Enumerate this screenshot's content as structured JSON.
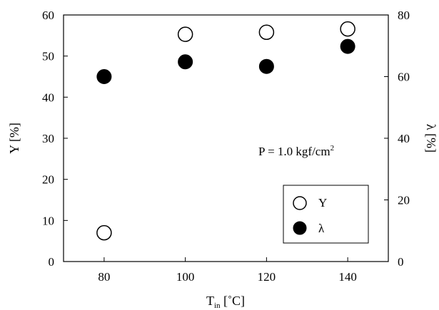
{
  "chart_data": {
    "type": "scatter",
    "x": [
      80,
      100,
      120,
      140
    ],
    "xlim": [
      70,
      150
    ],
    "x_ticks": [
      "80",
      "100",
      "120",
      "140"
    ],
    "xlabel_main": "T",
    "xlabel_sub": "in",
    "xlabel_unit": " [˚C]",
    "ylabel_left": "Y [%]",
    "ylim_left": [
      0,
      60
    ],
    "left_ticks": [
      "0",
      "10",
      "20",
      "30",
      "40",
      "50",
      "60"
    ],
    "ylabel_right": "λ [%]",
    "ylim_right": [
      0,
      80
    ],
    "right_ticks": [
      "0",
      "20",
      "40",
      "60",
      "80"
    ],
    "series": [
      {
        "name": "Y",
        "axis": "left",
        "marker": "open-circle",
        "x": [
          80,
          100,
          120,
          140
        ],
        "values": [
          7,
          55.3,
          55.8,
          56.6
        ]
      },
      {
        "name": "λ",
        "axis": "right",
        "marker": "filled-circle",
        "x": [
          80,
          100,
          120,
          140
        ],
        "values": [
          60,
          64.8,
          63.3,
          69.8
        ]
      }
    ],
    "annotation": {
      "text": "P = 1.0 kgf/cm",
      "sup": "2"
    },
    "legend": {
      "position": "bottom-right-inside",
      "items": [
        "Y",
        "λ"
      ]
    },
    "grid": false,
    "colors": {
      "open_fill": "#ffffff",
      "filled": "#000000",
      "stroke": "#000000"
    }
  }
}
